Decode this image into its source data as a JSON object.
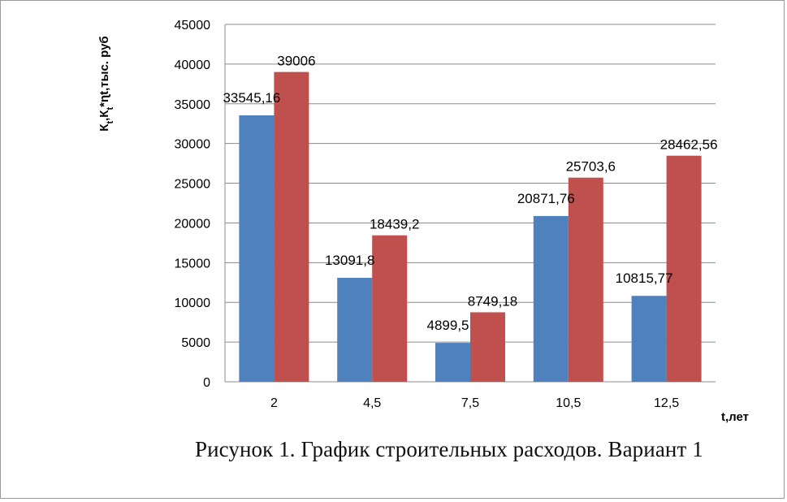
{
  "chart_data": {
    "type": "bar",
    "categories": [
      "2",
      "4,5",
      "7,5",
      "10,5",
      "12,5"
    ],
    "series": [
      {
        "values": [
          33545.16,
          13091.8,
          4899.5,
          20871.76,
          10815.77
        ],
        "labels": [
          "33545,16",
          "13091,8",
          "4899,5",
          "20871,76",
          "10815,77"
        ],
        "color": "#4f81bd"
      },
      {
        "values": [
          39006,
          18439.2,
          8749.18,
          25703.6,
          28462.56
        ],
        "labels": [
          "39006",
          "18439,2",
          "8749,18",
          "25703,6",
          "28462,56"
        ],
        "color": "#c0504d"
      }
    ],
    "ylim": [
      0,
      45000
    ],
    "yticks": [
      0,
      5000,
      10000,
      15000,
      20000,
      25000,
      30000,
      35000,
      40000,
      45000
    ],
    "ylabel_parts": [
      "К",
      "t",
      ",К",
      "t",
      "*ɳt,тыс. руб"
    ],
    "xlabel": "t,лет",
    "grid": true,
    "legend": "none"
  },
  "caption": "Рисунок 1. График строительных  расходов.  Вариант 1"
}
